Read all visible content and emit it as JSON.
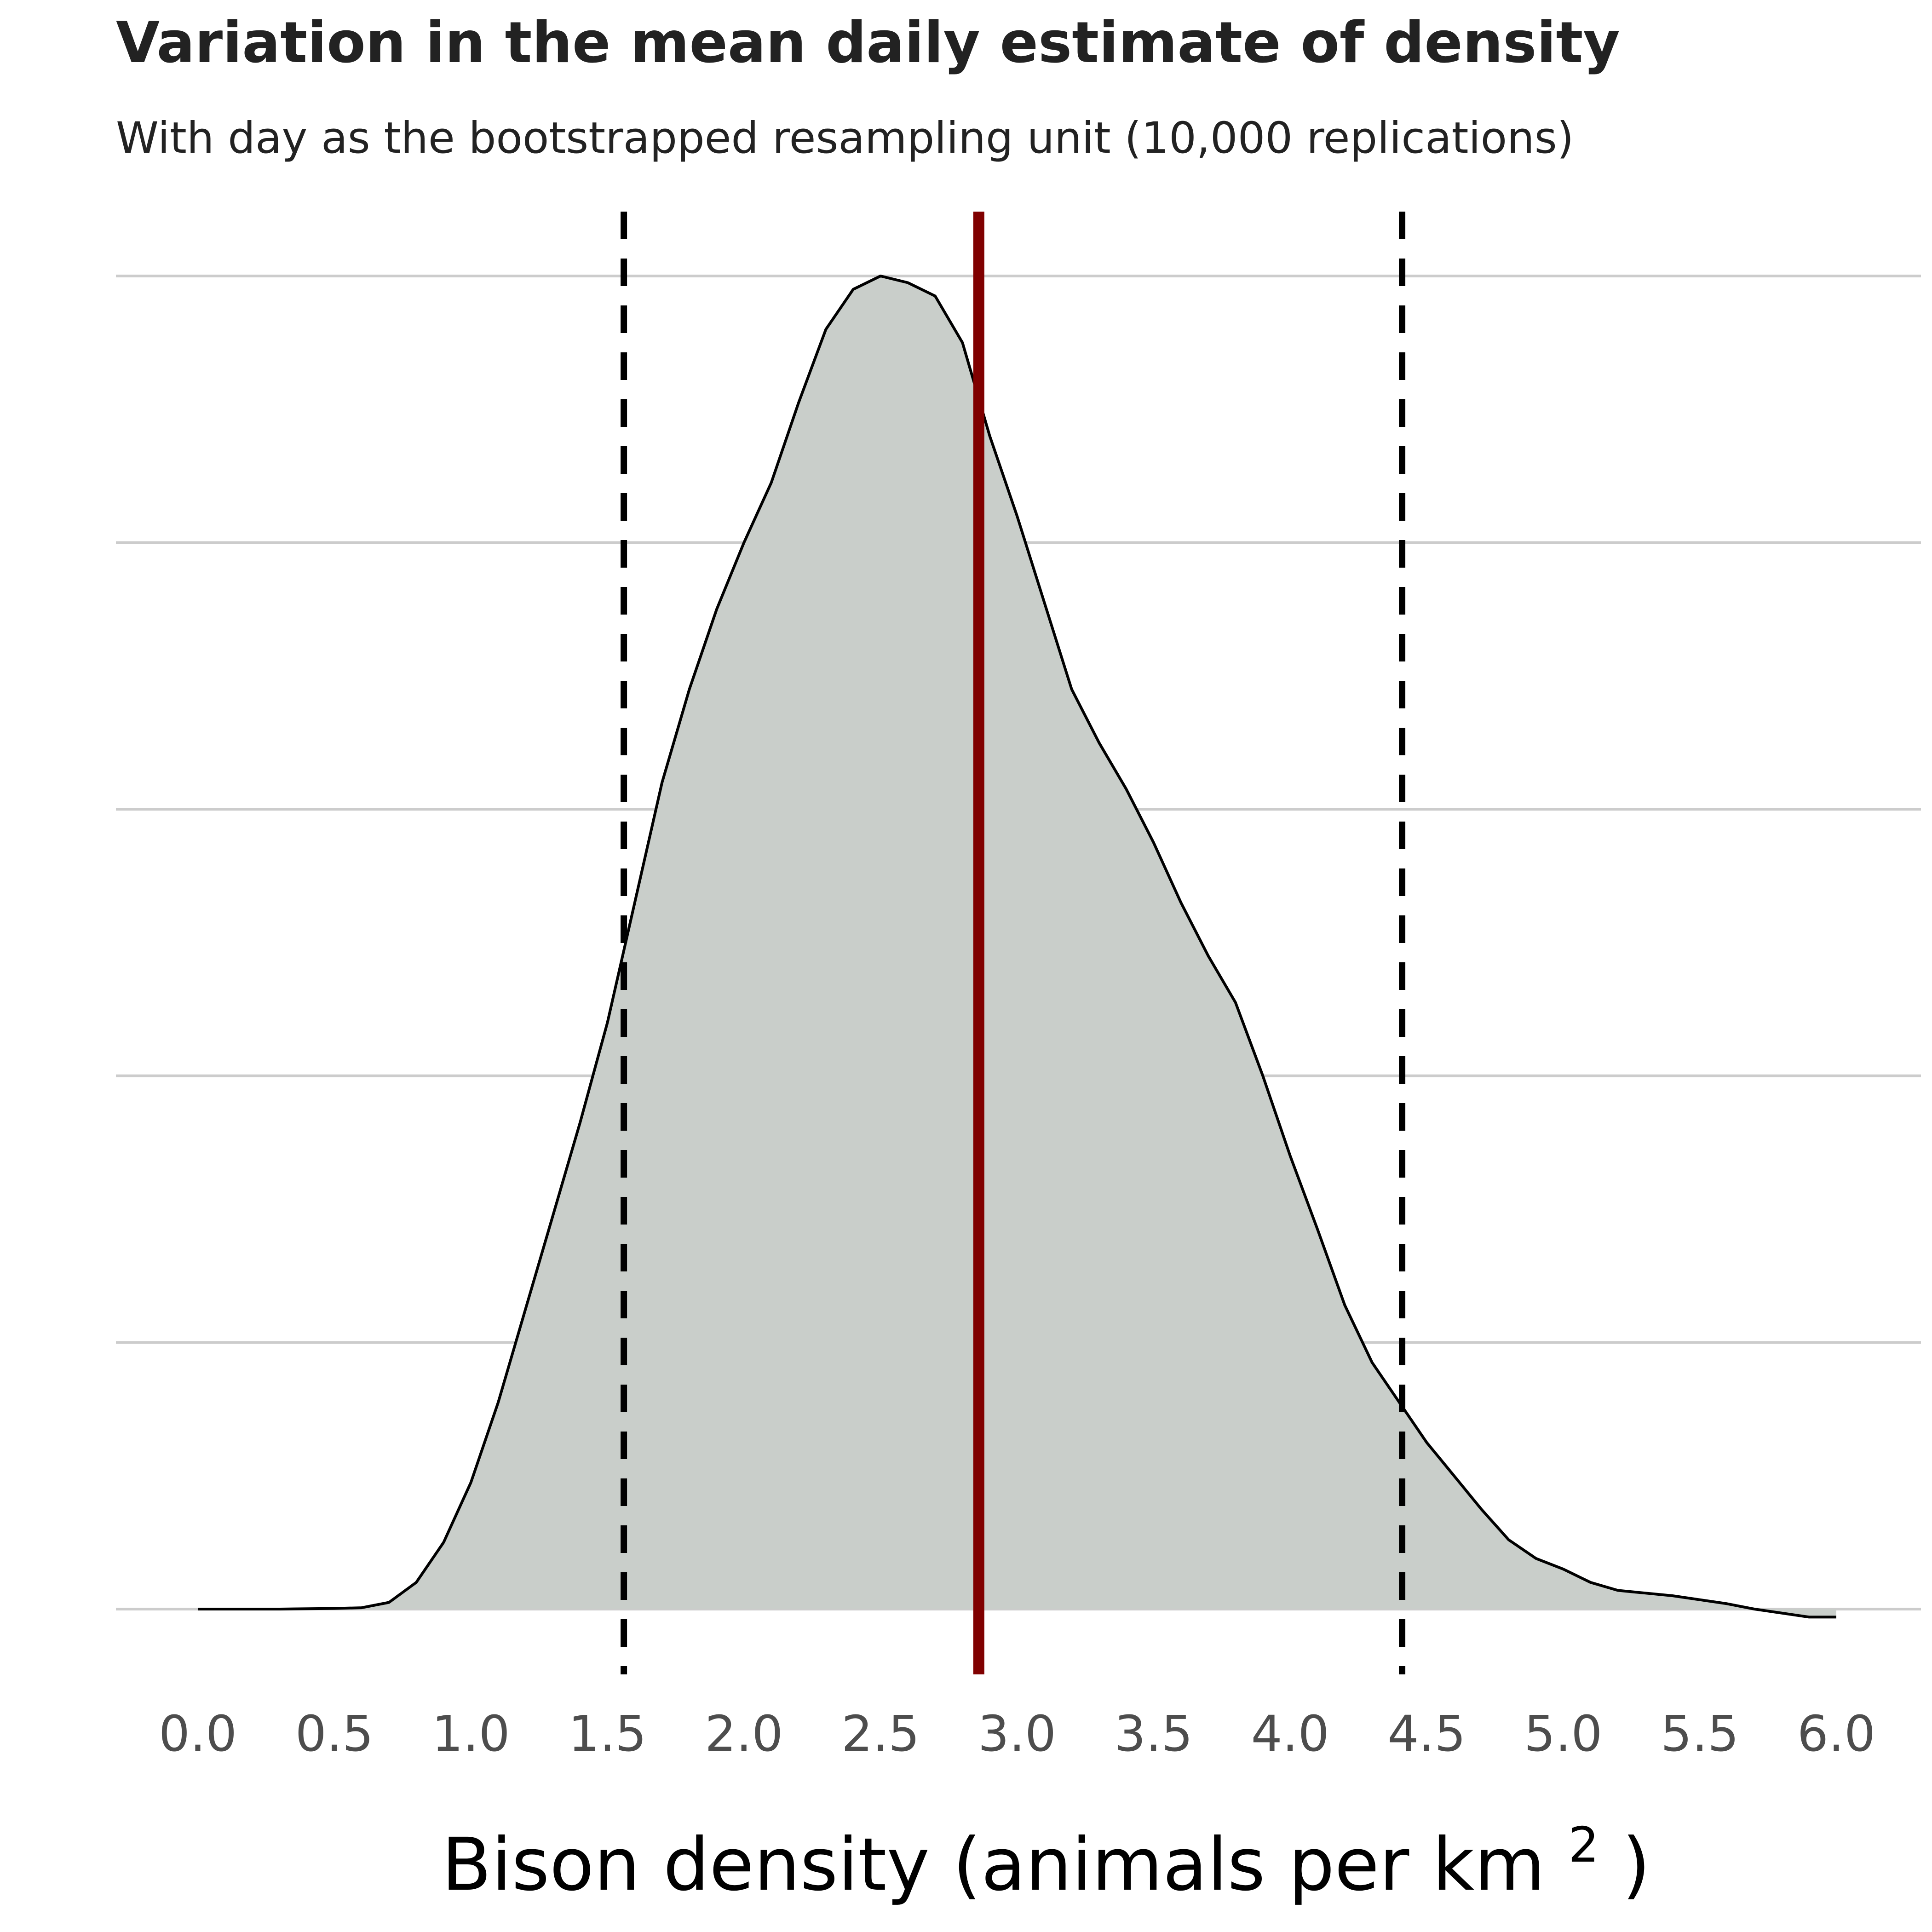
{
  "chart_data": {
    "type": "area",
    "title": "Variation in the mean daily estimate of density",
    "subtitle": "With day as the bootstrapped resampling unit (10,000 replications)",
    "xlabel": "Bison density (animals per km²)",
    "xlabel_parts": {
      "main": "Bison density",
      "unit_prefix": "(animals per km",
      "unit_superscript": "2",
      "unit_suffix": ")"
    },
    "ylabel": "",
    "xlim": [
      -0.1,
      6.25
    ],
    "ylim": [
      0,
      1.0
    ],
    "x_ticks": [
      0.0,
      0.5,
      1.0,
      1.5,
      2.0,
      2.5,
      3.0,
      3.5,
      4.0,
      4.5,
      5.0,
      5.5,
      6.0
    ],
    "x_tick_labels": [
      "0.0",
      "0.5",
      "1.0",
      "1.5",
      "2.0",
      "2.5",
      "3.0",
      "3.5",
      "4.0",
      "4.5",
      "5.0",
      "5.5",
      "6.0"
    ],
    "y_gridlines": [
      0.0,
      0.2,
      0.4,
      0.6,
      0.8,
      1.0
    ],
    "y_tick_labels_shown": false,
    "grid": "horizontal-major-only",
    "legend": "none",
    "series": [
      {
        "fill": "#c9ceca",
        "stroke": "#000000",
        "x": [
          0.0,
          0.3,
          0.5,
          0.6,
          0.7,
          0.8,
          0.9,
          1.0,
          1.1,
          1.2,
          1.3,
          1.4,
          1.5,
          1.6,
          1.7,
          1.8,
          1.9,
          2.0,
          2.1,
          2.2,
          2.3,
          2.4,
          2.5,
          2.6,
          2.7,
          2.8,
          2.9,
          3.0,
          3.1,
          3.2,
          3.3,
          3.4,
          3.5,
          3.6,
          3.7,
          3.8,
          3.9,
          4.0,
          4.1,
          4.2,
          4.3,
          4.4,
          4.5,
          4.6,
          4.7,
          4.8,
          4.9,
          5.0,
          5.1,
          5.2,
          5.3,
          5.4,
          5.5,
          5.6,
          5.7,
          5.8,
          5.9,
          6.0
        ],
        "y": [
          0.0,
          0.0,
          0.0005,
          0.001,
          0.005,
          0.02,
          0.05,
          0.095,
          0.155,
          0.225,
          0.295,
          0.365,
          0.44,
          0.53,
          0.62,
          0.69,
          0.75,
          0.8,
          0.845,
          0.905,
          0.96,
          0.99,
          1.0,
          0.995,
          0.985,
          0.95,
          0.88,
          0.82,
          0.755,
          0.69,
          0.65,
          0.615,
          0.575,
          0.53,
          0.49,
          0.455,
          0.4,
          0.34,
          0.285,
          0.228,
          0.185,
          0.155,
          0.125,
          0.1,
          0.075,
          0.052,
          0.038,
          0.03,
          0.02,
          0.014,
          0.012,
          0.01,
          0.007,
          0.004,
          0.0,
          -0.003,
          -0.006,
          -0.006
        ]
      }
    ],
    "vlines": [
      {
        "role": "mean",
        "x": 2.86,
        "color": "#800000",
        "style": "solid"
      },
      {
        "role": "ci-lower",
        "x": 1.56,
        "color": "#000000",
        "style": "dashed"
      },
      {
        "role": "ci-upper",
        "x": 4.41,
        "color": "#000000",
        "style": "dashed"
      }
    ]
  }
}
